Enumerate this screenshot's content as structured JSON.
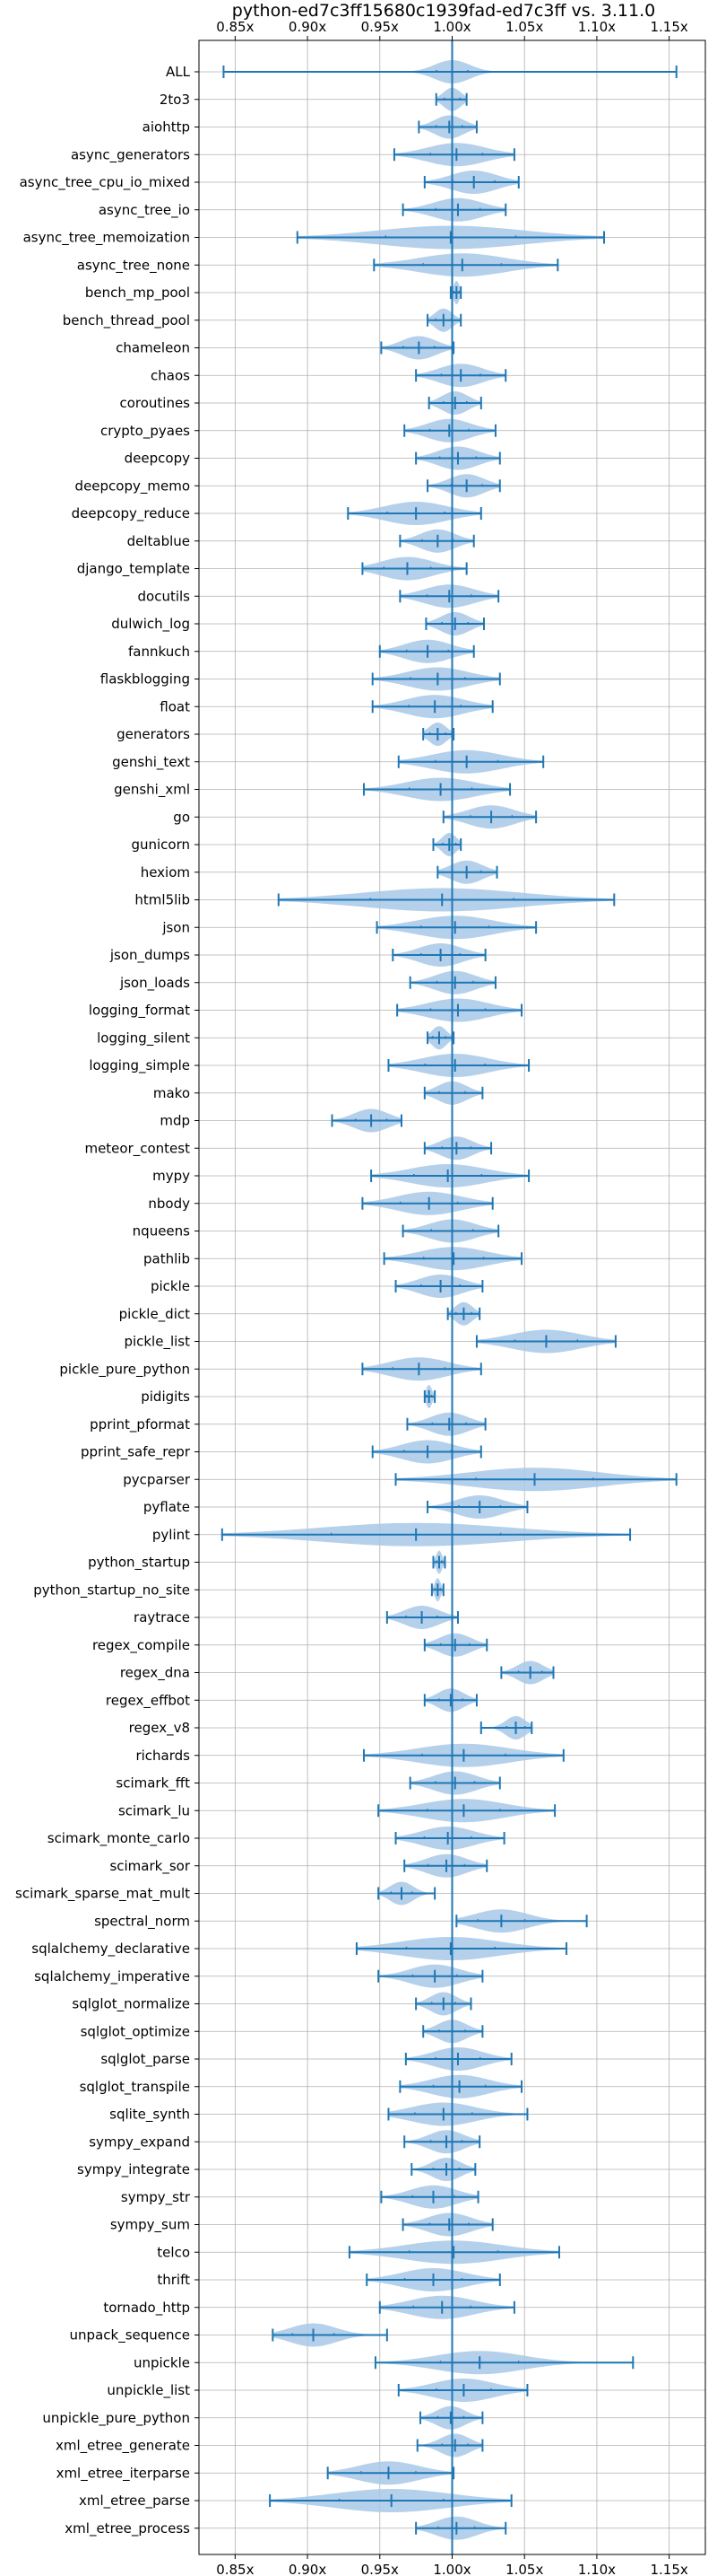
{
  "chart_data": {
    "type": "violin",
    "title": "python-ed7c3ff15680c1939fad-ed7c3ff vs. 3.11.0",
    "xlim": [
      0.825,
      1.175
    ],
    "xticks": [
      0.85,
      0.9,
      0.95,
      1.0,
      1.05,
      1.1,
      1.15
    ],
    "xtick_labels": [
      "0.85x",
      "0.90x",
      "0.95x",
      "1.00x",
      "1.05x",
      "1.10x",
      "1.15x"
    ],
    "reference_line": 1.0,
    "grid": true,
    "colors": {
      "violin_fill": "#a8c8e8",
      "line": "#1f77b4",
      "grid": "#b0b0b0"
    },
    "benchmarks": [
      {
        "name": "ALL",
        "min": 0.842,
        "max": 1.155,
        "median": 1.0,
        "spread": 0.012
      },
      {
        "name": "2to3",
        "min": 0.989,
        "max": 1.01,
        "median": 1.0,
        "spread": 0.006
      },
      {
        "name": "aiohttp",
        "min": 0.977,
        "max": 1.017,
        "median": 0.998,
        "spread": 0.01
      },
      {
        "name": "async_generators",
        "min": 0.96,
        "max": 1.043,
        "median": 1.003,
        "spread": 0.02
      },
      {
        "name": "async_tree_cpu_io_mixed",
        "min": 0.981,
        "max": 1.046,
        "median": 1.015,
        "spread": 0.016
      },
      {
        "name": "async_tree_io",
        "min": 0.966,
        "max": 1.037,
        "median": 1.004,
        "spread": 0.017
      },
      {
        "name": "async_tree_memoization",
        "min": 0.893,
        "max": 1.105,
        "median": 0.999,
        "spread": 0.05
      },
      {
        "name": "async_tree_none",
        "min": 0.946,
        "max": 1.073,
        "median": 1.007,
        "spread": 0.03
      },
      {
        "name": "bench_mp_pool",
        "min": 0.999,
        "max": 1.006,
        "median": 1.003,
        "spread": 0.002
      },
      {
        "name": "bench_thread_pool",
        "min": 0.983,
        "max": 1.006,
        "median": 0.994,
        "spread": 0.006
      },
      {
        "name": "chameleon",
        "min": 0.951,
        "max": 1.001,
        "median": 0.977,
        "spread": 0.012
      },
      {
        "name": "chaos",
        "min": 0.975,
        "max": 1.037,
        "median": 1.006,
        "spread": 0.015
      },
      {
        "name": "coroutines",
        "min": 0.984,
        "max": 1.02,
        "median": 1.002,
        "spread": 0.009
      },
      {
        "name": "crypto_pyaes",
        "min": 0.967,
        "max": 1.03,
        "median": 0.998,
        "spread": 0.015
      },
      {
        "name": "deepcopy",
        "min": 0.975,
        "max": 1.033,
        "median": 1.004,
        "spread": 0.014
      },
      {
        "name": "deepcopy_memo",
        "min": 0.983,
        "max": 1.033,
        "median": 1.01,
        "spread": 0.012
      },
      {
        "name": "deepcopy_reduce",
        "min": 0.928,
        "max": 1.02,
        "median": 0.975,
        "spread": 0.022
      },
      {
        "name": "deltablue",
        "min": 0.964,
        "max": 1.015,
        "median": 0.99,
        "spread": 0.012
      },
      {
        "name": "django_template",
        "min": 0.938,
        "max": 1.01,
        "median": 0.969,
        "spread": 0.018
      },
      {
        "name": "docutils",
        "min": 0.964,
        "max": 1.032,
        "median": 0.998,
        "spread": 0.017
      },
      {
        "name": "dulwich_log",
        "min": 0.982,
        "max": 1.022,
        "median": 1.002,
        "spread": 0.01
      },
      {
        "name": "fannkuch",
        "min": 0.95,
        "max": 1.015,
        "median": 0.983,
        "spread": 0.016
      },
      {
        "name": "flaskblogging",
        "min": 0.945,
        "max": 1.033,
        "median": 0.99,
        "spread": 0.021
      },
      {
        "name": "float",
        "min": 0.945,
        "max": 1.028,
        "median": 0.988,
        "spread": 0.02
      },
      {
        "name": "generators",
        "min": 0.98,
        "max": 1.001,
        "median": 0.99,
        "spread": 0.006
      },
      {
        "name": "genshi_text",
        "min": 0.963,
        "max": 1.063,
        "median": 1.01,
        "spread": 0.024
      },
      {
        "name": "genshi_xml",
        "min": 0.939,
        "max": 1.04,
        "median": 0.992,
        "spread": 0.024
      },
      {
        "name": "go",
        "min": 0.994,
        "max": 1.058,
        "median": 1.027,
        "spread": 0.016
      },
      {
        "name": "gunicorn",
        "min": 0.987,
        "max": 1.006,
        "median": 0.998,
        "spread": 0.005
      },
      {
        "name": "hexiom",
        "min": 0.99,
        "max": 1.031,
        "median": 1.01,
        "spread": 0.011
      },
      {
        "name": "html5lib",
        "min": 0.88,
        "max": 1.112,
        "median": 0.993,
        "spread": 0.055
      },
      {
        "name": "json",
        "min": 0.948,
        "max": 1.058,
        "median": 1.002,
        "spread": 0.026
      },
      {
        "name": "json_dumps",
        "min": 0.959,
        "max": 1.023,
        "median": 0.992,
        "spread": 0.015
      },
      {
        "name": "json_loads",
        "min": 0.971,
        "max": 1.03,
        "median": 1.002,
        "spread": 0.014
      },
      {
        "name": "logging_format",
        "min": 0.962,
        "max": 1.048,
        "median": 1.004,
        "spread": 0.021
      },
      {
        "name": "logging_silent",
        "min": 0.983,
        "max": 1.001,
        "median": 0.991,
        "spread": 0.005
      },
      {
        "name": "logging_simple",
        "min": 0.956,
        "max": 1.053,
        "median": 1.002,
        "spread": 0.023
      },
      {
        "name": "mako",
        "min": 0.981,
        "max": 1.021,
        "median": 1.0,
        "spread": 0.01
      },
      {
        "name": "mdp",
        "min": 0.917,
        "max": 0.965,
        "median": 0.944,
        "spread": 0.012
      },
      {
        "name": "meteor_contest",
        "min": 0.981,
        "max": 1.027,
        "median": 1.003,
        "spread": 0.011
      },
      {
        "name": "mypy",
        "min": 0.944,
        "max": 1.053,
        "median": 0.997,
        "spread": 0.026
      },
      {
        "name": "nbody",
        "min": 0.938,
        "max": 1.028,
        "median": 0.984,
        "spread": 0.022
      },
      {
        "name": "nqueens",
        "min": 0.966,
        "max": 1.032,
        "median": 1.0,
        "spread": 0.016
      },
      {
        "name": "pathlib",
        "min": 0.953,
        "max": 1.048,
        "median": 1.001,
        "spread": 0.023
      },
      {
        "name": "pickle",
        "min": 0.961,
        "max": 1.021,
        "median": 0.992,
        "spread": 0.015
      },
      {
        "name": "pickle_dict",
        "min": 0.997,
        "max": 1.019,
        "median": 1.008,
        "spread": 0.006
      },
      {
        "name": "pickle_list",
        "min": 1.017,
        "max": 1.113,
        "median": 1.065,
        "spread": 0.024
      },
      {
        "name": "pickle_pure_python",
        "min": 0.938,
        "max": 1.02,
        "median": 0.977,
        "spread": 0.02
      },
      {
        "name": "pidigits",
        "min": 0.981,
        "max": 0.988,
        "median": 0.984,
        "spread": 0.002
      },
      {
        "name": "pprint_pformat",
        "min": 0.969,
        "max": 1.023,
        "median": 0.998,
        "spread": 0.013
      },
      {
        "name": "pprint_safe_repr",
        "min": 0.945,
        "max": 1.02,
        "median": 0.983,
        "spread": 0.018
      },
      {
        "name": "pycparser",
        "min": 0.961,
        "max": 1.155,
        "median": 1.057,
        "spread": 0.045
      },
      {
        "name": "pyflate",
        "min": 0.983,
        "max": 1.052,
        "median": 1.019,
        "spread": 0.016
      },
      {
        "name": "pylint",
        "min": 0.841,
        "max": 1.123,
        "median": 0.975,
        "spread": 0.065
      },
      {
        "name": "python_startup",
        "min": 0.987,
        "max": 0.995,
        "median": 0.991,
        "spread": 0.002
      },
      {
        "name": "python_startup_no_site",
        "min": 0.986,
        "max": 0.994,
        "median": 0.99,
        "spread": 0.002
      },
      {
        "name": "raytrace",
        "min": 0.955,
        "max": 1.004,
        "median": 0.979,
        "spread": 0.012
      },
      {
        "name": "regex_compile",
        "min": 0.981,
        "max": 1.024,
        "median": 1.002,
        "spread": 0.011
      },
      {
        "name": "regex_dna",
        "min": 1.034,
        "max": 1.07,
        "median": 1.054,
        "spread": 0.009
      },
      {
        "name": "regex_effbot",
        "min": 0.981,
        "max": 1.017,
        "median": 0.999,
        "spread": 0.009
      },
      {
        "name": "regex_v8",
        "min": 1.02,
        "max": 1.055,
        "median": 1.044,
        "spread": 0.007
      },
      {
        "name": "richards",
        "min": 0.939,
        "max": 1.077,
        "median": 1.008,
        "spread": 0.032
      },
      {
        "name": "scimark_fft",
        "min": 0.971,
        "max": 1.033,
        "median": 1.002,
        "spread": 0.015
      },
      {
        "name": "scimark_lu",
        "min": 0.949,
        "max": 1.071,
        "median": 1.008,
        "spread": 0.028
      },
      {
        "name": "scimark_monte_carlo",
        "min": 0.961,
        "max": 1.036,
        "median": 0.997,
        "spread": 0.018
      },
      {
        "name": "scimark_sor",
        "min": 0.967,
        "max": 1.024,
        "median": 0.996,
        "spread": 0.014
      },
      {
        "name": "scimark_sparse_mat_mult",
        "min": 0.949,
        "max": 0.988,
        "median": 0.965,
        "spread": 0.008
      },
      {
        "name": "spectral_norm",
        "min": 1.003,
        "max": 1.093,
        "median": 1.034,
        "spread": 0.018
      },
      {
        "name": "sqlalchemy_declarative",
        "min": 0.934,
        "max": 1.079,
        "median": 0.999,
        "spread": 0.034
      },
      {
        "name": "sqlalchemy_imperative",
        "min": 0.949,
        "max": 1.021,
        "median": 0.988,
        "spread": 0.017
      },
      {
        "name": "sqlglot_normalize",
        "min": 0.975,
        "max": 1.013,
        "median": 0.994,
        "spread": 0.009
      },
      {
        "name": "sqlglot_optimize",
        "min": 0.98,
        "max": 1.021,
        "median": 1.0,
        "spread": 0.01
      },
      {
        "name": "sqlglot_parse",
        "min": 0.968,
        "max": 1.041,
        "median": 1.004,
        "spread": 0.017
      },
      {
        "name": "sqlglot_transpile",
        "min": 0.964,
        "max": 1.048,
        "median": 1.005,
        "spread": 0.02
      },
      {
        "name": "sqlite_synth",
        "min": 0.956,
        "max": 1.052,
        "median": 0.994,
        "spread": 0.022
      },
      {
        "name": "sympy_expand",
        "min": 0.967,
        "max": 1.019,
        "median": 0.996,
        "spread": 0.012
      },
      {
        "name": "sympy_integrate",
        "min": 0.972,
        "max": 1.016,
        "median": 0.996,
        "spread": 0.01
      },
      {
        "name": "sympy_str",
        "min": 0.951,
        "max": 1.018,
        "median": 0.987,
        "spread": 0.016
      },
      {
        "name": "sympy_sum",
        "min": 0.966,
        "max": 1.028,
        "median": 0.998,
        "spread": 0.015
      },
      {
        "name": "telco",
        "min": 0.929,
        "max": 1.074,
        "median": 1.001,
        "spread": 0.034
      },
      {
        "name": "thrift",
        "min": 0.941,
        "max": 1.033,
        "median": 0.987,
        "spread": 0.022
      },
      {
        "name": "tornado_http",
        "min": 0.95,
        "max": 1.043,
        "median": 0.993,
        "spread": 0.022
      },
      {
        "name": "unpack_sequence",
        "min": 0.876,
        "max": 0.955,
        "median": 0.904,
        "spread": 0.016
      },
      {
        "name": "unpickle",
        "min": 0.947,
        "max": 1.125,
        "median": 1.019,
        "spread": 0.03
      },
      {
        "name": "unpickle_list",
        "min": 0.963,
        "max": 1.052,
        "median": 1.008,
        "spread": 0.021
      },
      {
        "name": "unpickle_pure_python",
        "min": 0.978,
        "max": 1.021,
        "median": 0.999,
        "spread": 0.01
      },
      {
        "name": "xml_etree_generate",
        "min": 0.976,
        "max": 1.021,
        "median": 1.002,
        "spread": 0.01
      },
      {
        "name": "xml_etree_iterparse",
        "min": 0.914,
        "max": 1.001,
        "median": 0.956,
        "spread": 0.021
      },
      {
        "name": "xml_etree_parse",
        "min": 0.874,
        "max": 1.041,
        "median": 0.958,
        "spread": 0.04
      },
      {
        "name": "xml_etree_process",
        "min": 0.975,
        "max": 1.037,
        "median": 1.003,
        "spread": 0.014
      }
    ]
  }
}
